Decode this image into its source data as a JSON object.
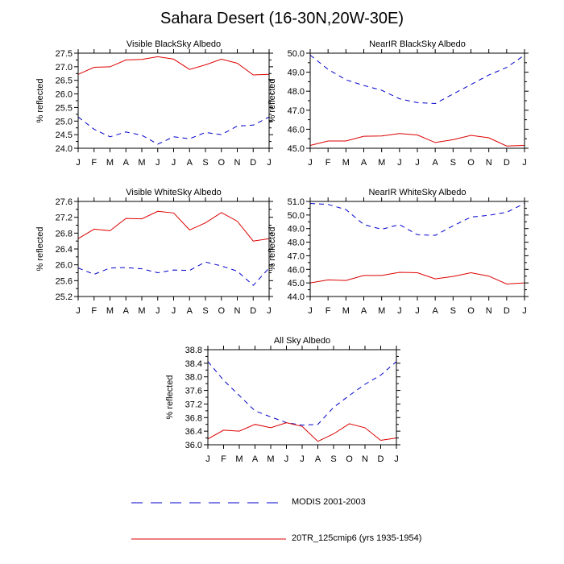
{
  "figure": {
    "title": "Sahara Desert (16-30N,20W-30E)"
  },
  "legend": [
    {
      "name": "MODIS 2001-2003",
      "color": "#0000cc",
      "dash": true
    },
    {
      "name": "20TR_125cmip6 (yrs 1935-1954)",
      "color": "#dd0000",
      "dash": false
    }
  ],
  "chart_data": [
    {
      "type": "line",
      "title": "Visible BlackSky Albedo",
      "ylabel": "% reflected",
      "categories": [
        "J",
        "F",
        "M",
        "A",
        "M",
        "J",
        "J",
        "A",
        "S",
        "O",
        "N",
        "D",
        "J"
      ],
      "ylim": [
        24.0,
        27.5
      ],
      "yticks": [
        "24.0",
        "24.5",
        "25.0",
        "25.5",
        "26.0",
        "26.5",
        "27.0",
        "27.5"
      ],
      "series": [
        {
          "name": "MODIS 2001-2003",
          "values": [
            25.15,
            24.7,
            24.42,
            24.6,
            24.48,
            24.15,
            24.42,
            24.35,
            24.58,
            24.5,
            24.82,
            24.85,
            25.15
          ]
        },
        {
          "name": "20TR_125cmip6 (yrs 1935-1954)",
          "values": [
            26.72,
            26.98,
            27.0,
            27.25,
            27.27,
            27.37,
            27.28,
            26.9,
            27.07,
            27.28,
            27.13,
            26.7,
            26.72
          ]
        }
      ]
    },
    {
      "type": "line",
      "title": "NearIR BlackSky Albedo",
      "ylabel": "% reflected",
      "categories": [
        "J",
        "F",
        "M",
        "A",
        "M",
        "J",
        "J",
        "A",
        "S",
        "O",
        "N",
        "D",
        "J"
      ],
      "ylim": [
        45.0,
        50.0
      ],
      "yticks": [
        "45.0",
        "46.0",
        "47.0",
        "48.0",
        "49.0",
        "50.0"
      ],
      "series": [
        {
          "name": "MODIS 2001-2003",
          "values": [
            49.9,
            49.15,
            48.6,
            48.3,
            48.05,
            47.6,
            47.4,
            47.35,
            47.85,
            48.35,
            48.85,
            49.25,
            49.9
          ]
        },
        {
          "name": "20TR_125cmip6 (yrs 1935-1954)",
          "values": [
            45.15,
            45.38,
            45.38,
            45.63,
            45.65,
            45.77,
            45.7,
            45.3,
            45.45,
            45.68,
            45.55,
            45.12,
            45.15
          ]
        }
      ]
    },
    {
      "type": "line",
      "title": "Visible WhiteSky Albedo",
      "ylabel": "% reflected",
      "categories": [
        "J",
        "F",
        "M",
        "A",
        "M",
        "J",
        "J",
        "A",
        "S",
        "O",
        "N",
        "D",
        "J"
      ],
      "ylim": [
        25.2,
        27.6
      ],
      "yticks": [
        "25.2",
        "25.6",
        "26.0",
        "26.4",
        "26.8",
        "27.2",
        "27.6"
      ],
      "series": [
        {
          "name": "MODIS 2001-2003",
          "values": [
            25.92,
            25.76,
            25.92,
            25.93,
            25.9,
            25.8,
            25.87,
            25.86,
            26.07,
            25.97,
            25.84,
            25.48,
            25.92
          ]
        },
        {
          "name": "20TR_125cmip6 (yrs 1935-1954)",
          "values": [
            26.66,
            26.9,
            26.86,
            27.17,
            27.16,
            27.35,
            27.31,
            26.88,
            27.06,
            27.32,
            27.1,
            26.6,
            26.66
          ]
        }
      ]
    },
    {
      "type": "line",
      "title": "NearIR WhiteSky Albedo",
      "ylabel": "% reflected",
      "categories": [
        "J",
        "F",
        "M",
        "A",
        "M",
        "J",
        "J",
        "A",
        "S",
        "O",
        "N",
        "D",
        "J"
      ],
      "ylim": [
        44.0,
        51.0
      ],
      "yticks": [
        "44.0",
        "45.0",
        "46.0",
        "47.0",
        "48.0",
        "49.0",
        "50.0",
        "51.0"
      ],
      "series": [
        {
          "name": "MODIS 2001-2003",
          "values": [
            50.85,
            50.78,
            50.4,
            49.3,
            48.95,
            49.3,
            48.55,
            48.5,
            49.2,
            49.85,
            49.98,
            50.2,
            50.85
          ]
        },
        {
          "name": "20TR_125cmip6 (yrs 1935-1954)",
          "values": [
            45.0,
            45.22,
            45.18,
            45.55,
            45.55,
            45.78,
            45.75,
            45.3,
            45.48,
            45.75,
            45.5,
            44.92,
            45.0
          ]
        }
      ]
    },
    {
      "type": "line",
      "title": "All Sky Albedo",
      "ylabel": "% reflected",
      "categories": [
        "J",
        "F",
        "M",
        "A",
        "M",
        "J",
        "J",
        "A",
        "S",
        "O",
        "N",
        "D",
        "J"
      ],
      "ylim": [
        36.0,
        38.8
      ],
      "yticks": [
        "36.0",
        "36.4",
        "36.8",
        "37.2",
        "37.6",
        "38.0",
        "38.4",
        "38.8"
      ],
      "series": [
        {
          "name": "MODIS 2001-2003",
          "values": [
            38.45,
            37.9,
            37.45,
            37.0,
            36.82,
            36.65,
            36.58,
            36.6,
            37.1,
            37.45,
            37.78,
            38.05,
            38.45
          ]
        },
        {
          "name": "20TR_125cmip6 (yrs 1935-1954)",
          "values": [
            36.17,
            36.43,
            36.4,
            36.6,
            36.5,
            36.65,
            36.54,
            36.1,
            36.32,
            36.62,
            36.5,
            36.13,
            36.2
          ]
        }
      ]
    }
  ]
}
